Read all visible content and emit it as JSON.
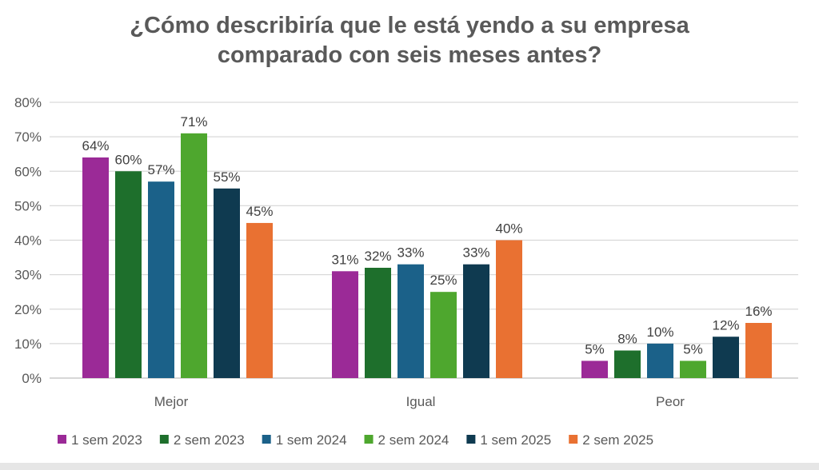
{
  "chart_data": {
    "type": "bar",
    "title": [
      "¿Cómo describiría que le está yendo a su empresa",
      "comparado con seis meses antes?"
    ],
    "categories": [
      "Mejor",
      "Igual",
      "Peor"
    ],
    "series": [
      {
        "name": "1 sem 2023",
        "color": "#9b2a97",
        "values": [
          64,
          31,
          5
        ]
      },
      {
        "name": "2 sem 2023",
        "color": "#1e6f2c",
        "values": [
          60,
          32,
          8
        ]
      },
      {
        "name": "1 sem 2024",
        "color": "#1b6189",
        "values": [
          57,
          33,
          10
        ]
      },
      {
        "name": "2 sem 2024",
        "color": "#4ea72e",
        "values": [
          71,
          25,
          5
        ]
      },
      {
        "name": "1 sem 2025",
        "color": "#0f3a50",
        "values": [
          55,
          33,
          12
        ]
      },
      {
        "name": "2 sem 2025",
        "color": "#e97132",
        "values": [
          45,
          40,
          16
        ]
      }
    ],
    "ylim": [
      0,
      80
    ],
    "yticks": [
      "0%",
      "10%",
      "20%",
      "30%",
      "40%",
      "50%",
      "60%",
      "70%",
      "80%"
    ],
    "value_suffix": "%",
    "grid": true,
    "legend": "bottom",
    "xlabel": "",
    "ylabel": ""
  }
}
